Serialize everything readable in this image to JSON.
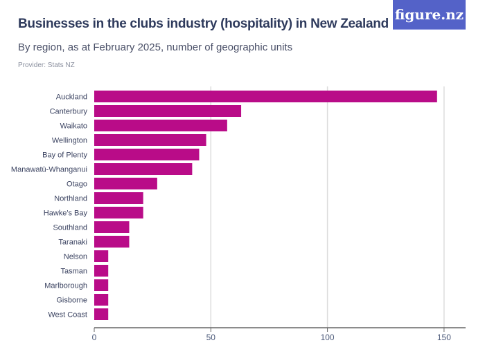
{
  "header": {
    "title": "Businesses in the clubs industry (hospitality) in New Zealand",
    "subtitle": "By region, as at February 2025, number of geographic units",
    "provider": "Provider: Stats NZ",
    "logo": "figure.nz"
  },
  "chart_data": {
    "type": "bar",
    "orientation": "horizontal",
    "title": "Businesses in the clubs industry (hospitality) in New Zealand",
    "subtitle": "By region, as at February 2025, number of geographic units",
    "categories": [
      "Auckland",
      "Canterbury",
      "Waikato",
      "Wellington",
      "Bay of Plenty",
      "Manawatū-Whanganui",
      "Otago",
      "Northland",
      "Hawke's Bay",
      "Southland",
      "Taranaki",
      "Nelson",
      "Tasman",
      "Marlborough",
      "Gisborne",
      "West Coast"
    ],
    "values": [
      147,
      63,
      57,
      48,
      45,
      42,
      27,
      21,
      21,
      15,
      15,
      6,
      6,
      6,
      6,
      6
    ],
    "xlim": [
      0,
      160
    ],
    "xticks": [
      0,
      50,
      100,
      150
    ],
    "grid": true,
    "bar_color": "#b90c88"
  }
}
